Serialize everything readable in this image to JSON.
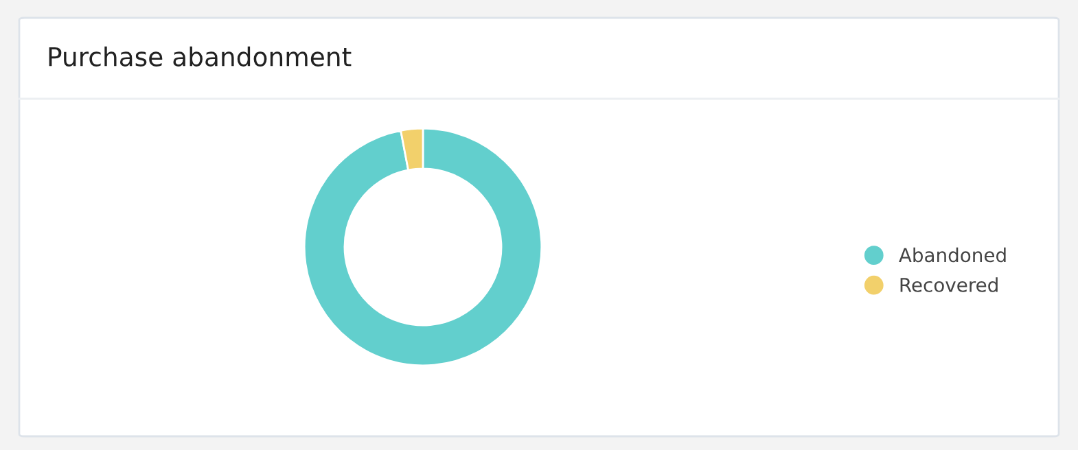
{
  "chart_data": {
    "type": "donut",
    "title": "Purchase abandonment",
    "categories": [
      "Abandoned",
      "Recovered"
    ],
    "values": [
      97,
      3
    ],
    "colors": [
      "#62cfcd",
      "#f2d06b"
    ],
    "legend": "right"
  }
}
